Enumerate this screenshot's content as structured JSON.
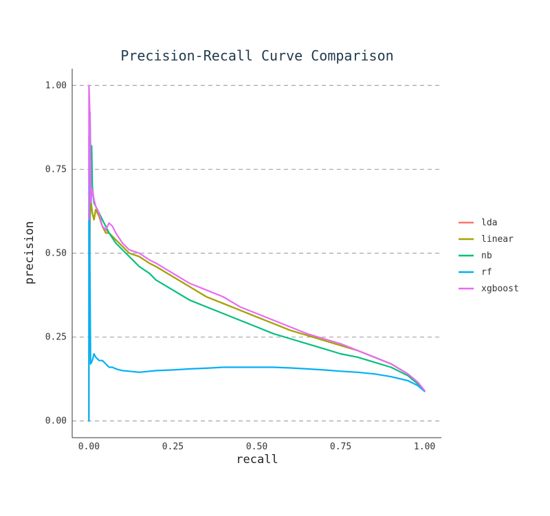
{
  "chart_data": {
    "type": "line",
    "title": "Precision-Recall Curve Comparison",
    "xlabel": "recall",
    "ylabel": "precision",
    "xlim": [
      -0.05,
      1.05
    ],
    "ylim": [
      -0.05,
      1.05
    ],
    "xticks": [
      "0.00",
      "0.25",
      "0.50",
      "0.75",
      "1.00"
    ],
    "yticks": [
      "0.00",
      "0.25",
      "0.50",
      "0.75",
      "1.00"
    ],
    "grid": "horizontal dashed",
    "legend_position": "right",
    "series": [
      {
        "name": "lda",
        "color": "#F8766D",
        "x": [
          0.0,
          0.0,
          0.005,
          0.01,
          0.015,
          0.02,
          0.03,
          0.04,
          0.05,
          0.06,
          0.07,
          0.08,
          0.1,
          0.12,
          0.15,
          0.18,
          0.2,
          0.25,
          0.3,
          0.35,
          0.4,
          0.45,
          0.5,
          0.55,
          0.6,
          0.65,
          0.7,
          0.75,
          0.8,
          0.85,
          0.9,
          0.95,
          0.98,
          1.0
        ],
        "y": [
          0.0,
          0.62,
          0.65,
          0.62,
          0.6,
          0.63,
          0.61,
          0.58,
          0.57,
          0.56,
          0.55,
          0.54,
          0.52,
          0.5,
          0.49,
          0.47,
          0.46,
          0.43,
          0.4,
          0.37,
          0.35,
          0.33,
          0.31,
          0.29,
          0.27,
          0.255,
          0.24,
          0.225,
          0.21,
          0.19,
          0.17,
          0.14,
          0.115,
          0.09
        ]
      },
      {
        "name": "linear",
        "color": "#A3A500",
        "x": [
          0.0,
          0.0,
          0.003,
          0.006,
          0.01,
          0.015,
          0.02,
          0.03,
          0.04,
          0.05,
          0.06,
          0.07,
          0.08,
          0.1,
          0.12,
          0.15,
          0.18,
          0.2,
          0.25,
          0.3,
          0.35,
          0.4,
          0.45,
          0.5,
          0.55,
          0.6,
          0.65,
          0.7,
          0.75,
          0.8,
          0.85,
          0.9,
          0.95,
          0.98,
          1.0
        ],
        "y": [
          0.0,
          0.17,
          0.6,
          0.66,
          0.62,
          0.6,
          0.63,
          0.61,
          0.58,
          0.56,
          0.56,
          0.55,
          0.54,
          0.52,
          0.5,
          0.49,
          0.47,
          0.46,
          0.43,
          0.4,
          0.37,
          0.35,
          0.33,
          0.31,
          0.29,
          0.27,
          0.255,
          0.24,
          0.225,
          0.21,
          0.19,
          0.17,
          0.14,
          0.115,
          0.09
        ]
      },
      {
        "name": "nb",
        "color": "#00BF7D",
        "x": [
          0.0,
          0.003,
          0.005,
          0.008,
          0.01,
          0.015,
          0.02,
          0.03,
          0.04,
          0.05,
          0.06,
          0.08,
          0.1,
          0.12,
          0.15,
          0.18,
          0.2,
          0.25,
          0.3,
          0.35,
          0.4,
          0.45,
          0.5,
          0.55,
          0.6,
          0.65,
          0.7,
          0.75,
          0.8,
          0.85,
          0.9,
          0.95,
          0.98,
          1.0
        ],
        "y": [
          0.6,
          0.92,
          0.8,
          0.82,
          0.7,
          0.65,
          0.64,
          0.62,
          0.6,
          0.58,
          0.56,
          0.53,
          0.51,
          0.49,
          0.46,
          0.44,
          0.42,
          0.39,
          0.36,
          0.34,
          0.32,
          0.3,
          0.28,
          0.26,
          0.245,
          0.23,
          0.215,
          0.2,
          0.19,
          0.175,
          0.16,
          0.135,
          0.11,
          0.09
        ]
      },
      {
        "name": "rf",
        "color": "#00B0F6",
        "x": [
          0.0,
          0.0,
          0.005,
          0.01,
          0.015,
          0.02,
          0.03,
          0.04,
          0.05,
          0.06,
          0.07,
          0.08,
          0.1,
          0.12,
          0.15,
          0.2,
          0.25,
          0.3,
          0.35,
          0.4,
          0.45,
          0.5,
          0.55,
          0.6,
          0.65,
          0.7,
          0.75,
          0.8,
          0.85,
          0.9,
          0.95,
          0.98,
          1.0
        ],
        "y": [
          0.0,
          0.85,
          0.17,
          0.18,
          0.2,
          0.19,
          0.18,
          0.18,
          0.17,
          0.16,
          0.16,
          0.155,
          0.15,
          0.148,
          0.145,
          0.15,
          0.152,
          0.155,
          0.157,
          0.16,
          0.16,
          0.16,
          0.16,
          0.158,
          0.155,
          0.152,
          0.148,
          0.145,
          0.14,
          0.132,
          0.12,
          0.105,
          0.088
        ]
      },
      {
        "name": "xgboost",
        "color": "#E76BF3",
        "x": [
          0.0,
          0.0,
          0.003,
          0.006,
          0.01,
          0.015,
          0.02,
          0.03,
          0.04,
          0.05,
          0.06,
          0.07,
          0.08,
          0.1,
          0.12,
          0.15,
          0.18,
          0.2,
          0.25,
          0.3,
          0.35,
          0.4,
          0.45,
          0.5,
          0.55,
          0.6,
          0.65,
          0.7,
          0.75,
          0.8,
          0.85,
          0.9,
          0.95,
          0.98,
          1.0
        ],
        "y": [
          0.6,
          1.0,
          0.9,
          0.65,
          0.69,
          0.66,
          0.64,
          0.62,
          0.58,
          0.57,
          0.59,
          0.58,
          0.56,
          0.53,
          0.51,
          0.5,
          0.48,
          0.47,
          0.44,
          0.41,
          0.39,
          0.37,
          0.34,
          0.32,
          0.3,
          0.28,
          0.26,
          0.245,
          0.23,
          0.21,
          0.19,
          0.17,
          0.14,
          0.115,
          0.09
        ]
      }
    ]
  }
}
